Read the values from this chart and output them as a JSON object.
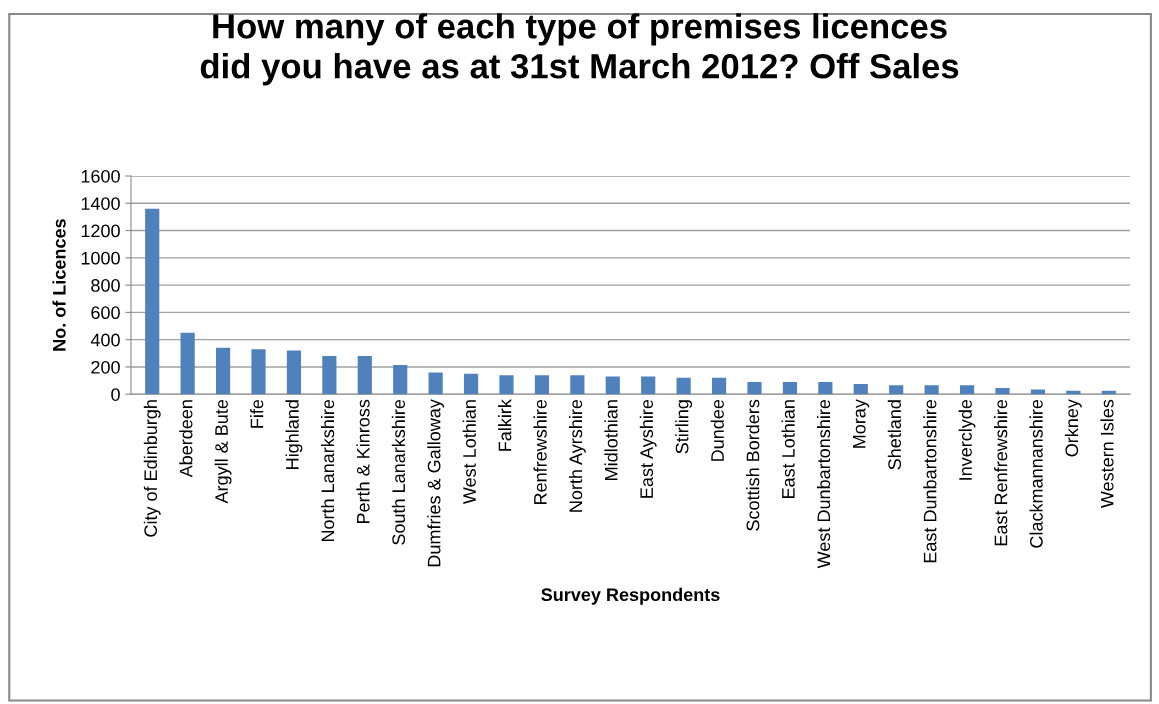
{
  "chart_data": {
    "type": "bar",
    "title": "How many of each type of premises licences\ndid you have as at 31st March 2012? Off Sales",
    "xlabel": "Survey Respondents",
    "ylabel": "No. of Licences",
    "categories": [
      "City of Edinburgh",
      "Aberdeen",
      "Argyll & Bute",
      "Fife",
      "Highland",
      "North Lanarkshire",
      "Perth & Kinross",
      "South Lanarkshire",
      "Dumfries & Galloway",
      "West Lothian",
      "Falkirk",
      "Renfrewshire",
      "North Ayrshire",
      "Midlothian",
      "East Ayshire",
      "Stirling",
      "Dundee",
      "Scottish Borders",
      "East Lothian",
      "West Dunbartonshire",
      "Moray",
      "Shetland",
      "East Dunbartonshire",
      "Inverclyde",
      "East Renfrewshire",
      "Clackmannanshire",
      "Orkney",
      "Western Isles"
    ],
    "values": [
      1360,
      450,
      340,
      330,
      320,
      280,
      280,
      215,
      160,
      150,
      140,
      140,
      140,
      130,
      130,
      120,
      120,
      90,
      90,
      90,
      75,
      65,
      65,
      65,
      45,
      35,
      25,
      25
    ],
    "color": "#4f81bd",
    "ylim": [
      0,
      1600
    ],
    "yticks": [
      0,
      200,
      400,
      600,
      800,
      1000,
      1200,
      1400,
      1600
    ],
    "grid": "y",
    "legend": false
  }
}
